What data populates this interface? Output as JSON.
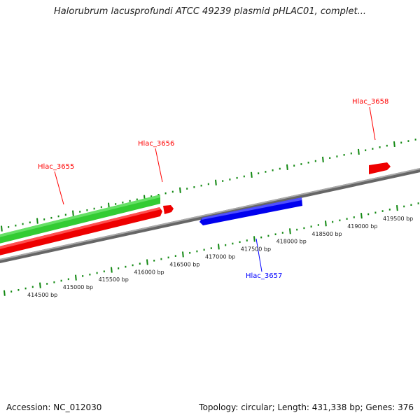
{
  "title": "Halorubrum lacusprofundi ATCC 49239 plasmid pHLAC01, complet...",
  "footer": {
    "accession": "Accession: NC_012030",
    "stats": "Topology: circular; Length: 431,338 bp; Genes: 376"
  },
  "colors": {
    "forward": "#ff0000",
    "reverse": "#0000ff",
    "cds_track": "#33cc33",
    "backbone": "#888888",
    "ticks": "#118811"
  },
  "genes": [
    {
      "name": "Hlac_3655",
      "color": "#ff0000"
    },
    {
      "name": "Hlac_3656",
      "color": "#ff0000"
    },
    {
      "name": "Hlac_3657",
      "color": "#0000ff"
    },
    {
      "name": "Hlac_3658",
      "color": "#ff0000"
    }
  ],
  "ruler_labels": [
    "414500 bp",
    "415000 bp",
    "415500 bp",
    "416000 bp",
    "416500 bp",
    "417000 bp",
    "417500 bp",
    "418000 bp",
    "418500 bp",
    "419000 bp",
    "419500 bp"
  ]
}
